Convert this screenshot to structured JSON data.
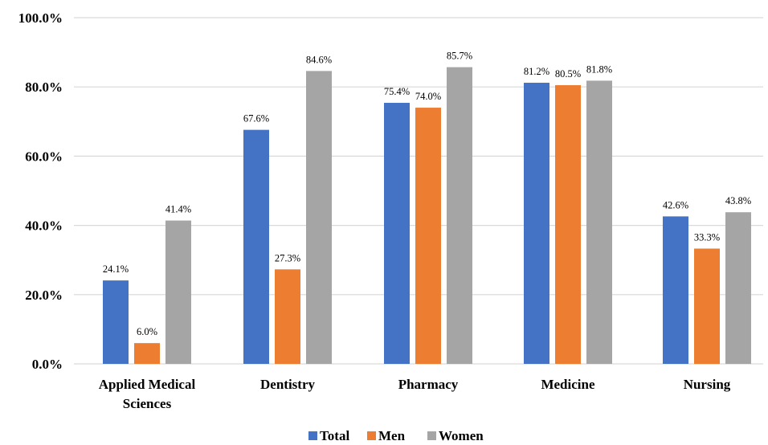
{
  "chart_data": {
    "type": "bar",
    "categories": [
      [
        "Applied Medical",
        "Sciences"
      ],
      [
        "Dentistry"
      ],
      [
        "Pharmacy"
      ],
      [
        "Medicine"
      ],
      [
        "Nursing"
      ]
    ],
    "series": [
      {
        "name": "Total",
        "color": "#4472C4",
        "values": [
          24.1,
          67.6,
          75.4,
          81.2,
          42.6
        ],
        "labels": [
          "24.1%",
          "67.6%",
          "75.4%",
          "81.2%",
          "42.6%"
        ]
      },
      {
        "name": "Men",
        "color": "#ED7D31",
        "values": [
          6.0,
          27.3,
          74.0,
          80.5,
          33.3
        ],
        "labels": [
          "6.0%",
          "27.3%",
          "74.0%",
          "80.5%",
          "33.3%"
        ]
      },
      {
        "name": "Women",
        "color": "#A5A5A5",
        "values": [
          41.4,
          84.6,
          85.7,
          81.8,
          43.8
        ],
        "labels": [
          "41.4%",
          "84.6%",
          "85.7%",
          "81.8%",
          "43.8%"
        ]
      }
    ],
    "y_ticks": [
      0,
      20,
      40,
      60,
      80,
      100
    ],
    "y_tick_labels": [
      "0.0%",
      "20.0%",
      "40.0%",
      "60.0%",
      "80.0%",
      "100.0%"
    ],
    "ylim": [
      0,
      100
    ],
    "grid": true,
    "legend_position": "bottom",
    "title": "",
    "xlabel": "",
    "ylabel": ""
  }
}
